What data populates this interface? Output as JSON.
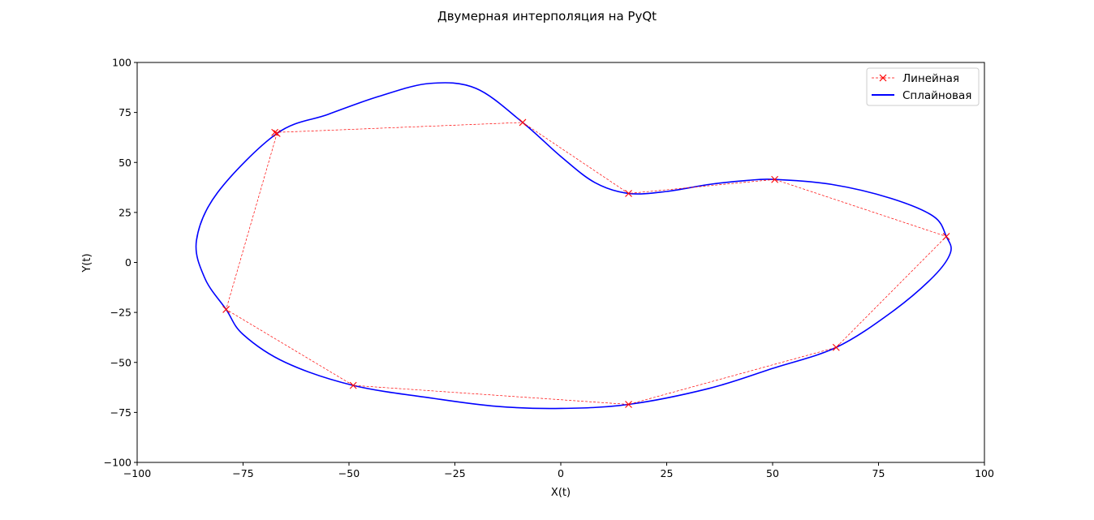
{
  "chart_data": {
    "type": "line",
    "title": "Двумерная интерполяция на PyQt",
    "xlabel": "X(t)",
    "ylabel": "Y(t)",
    "xlim": [
      -100,
      100
    ],
    "ylim": [
      -100,
      100
    ],
    "xticks": [
      -100,
      -75,
      -50,
      -25,
      0,
      25,
      50,
      75,
      100
    ],
    "yticks": [
      -100,
      -75,
      -50,
      -25,
      0,
      25,
      50,
      75,
      100
    ],
    "xtick_labels": [
      "−100",
      "−75",
      "−50",
      "−25",
      "0",
      "25",
      "50",
      "75",
      "100"
    ],
    "ytick_labels": [
      "−100",
      "−75",
      "−50",
      "−25",
      "0",
      "25",
      "50",
      "75",
      "100"
    ],
    "grid": false,
    "legend_position": "top-right",
    "series": [
      {
        "name": "Линейная",
        "style": "dashed",
        "marker": "x",
        "color": "#ff0000",
        "points": [
          [
            -67.5,
            65
          ],
          [
            -9,
            70
          ],
          [
            16,
            34.5
          ],
          [
            50.5,
            41.5
          ],
          [
            91,
            13
          ],
          [
            65,
            -42.5
          ],
          [
            16,
            -71
          ],
          [
            -49,
            -61.5
          ],
          [
            -79,
            -23.5
          ],
          [
            -67,
            64.5
          ]
        ]
      },
      {
        "name": "Сплайновая",
        "style": "solid",
        "color": "#0000ff",
        "points": [
          [
            -67,
            64.5
          ],
          [
            -55,
            74
          ],
          [
            -43,
            83
          ],
          [
            -31,
            89.5
          ],
          [
            -20,
            87
          ],
          [
            -9,
            70
          ],
          [
            0,
            53
          ],
          [
            8,
            40
          ],
          [
            16,
            34.5
          ],
          [
            25,
            35.5
          ],
          [
            35,
            39
          ],
          [
            44,
            41
          ],
          [
            50.5,
            41.5
          ],
          [
            64,
            39
          ],
          [
            78,
            32
          ],
          [
            88,
            23
          ],
          [
            91,
            13
          ],
          [
            92,
            5
          ],
          [
            88,
            -7
          ],
          [
            78,
            -25
          ],
          [
            65,
            -42.5
          ],
          [
            50,
            -53
          ],
          [
            35,
            -63
          ],
          [
            16,
            -71
          ],
          [
            0,
            -73
          ],
          [
            -15,
            -72
          ],
          [
            -30,
            -68
          ],
          [
            -49,
            -61.5
          ],
          [
            -65,
            -50
          ],
          [
            -75,
            -36
          ],
          [
            -79,
            -23.5
          ],
          [
            -84,
            -8
          ],
          [
            -86,
            11
          ],
          [
            -81,
            35
          ],
          [
            -67,
            64.5
          ]
        ]
      }
    ]
  }
}
